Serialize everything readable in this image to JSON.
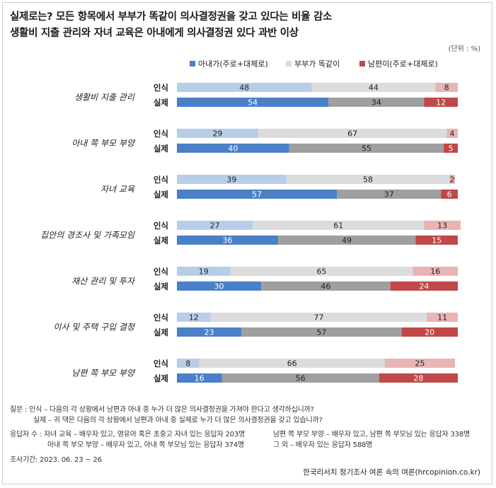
{
  "header": {
    "title_line1": "실제로는? 모든 항목에서 부부가 똑같이 의사결정권을 갖고 있다는 비율 감소",
    "title_line2": "생활비 지출 관리와 자녀 교육은 아내에게 의사결정권 있다 과반 이상",
    "unit": "(단위 : %)"
  },
  "legend": {
    "wife": "아내가(주로+대체로)",
    "equal": "부부가 똑같이",
    "husband": "남편이(주로+대체로)"
  },
  "colors": {
    "wife_perception": "#b8cde8",
    "wife_reality": "#4a80c8",
    "equal_perception": "#dcdcdc",
    "equal_reality": "#9f9f9f",
    "husband_perception": "#e8b4b4",
    "husband_reality": "#c04848",
    "text_perception": "#222222",
    "text_reality": "#ffffff"
  },
  "chart_data": {
    "type": "bar",
    "orientation": "horizontal-stacked-100",
    "row_labels": [
      "인식",
      "실제"
    ],
    "series_names": [
      "아내가(주로+대체로)",
      "부부가 똑같이",
      "남편이(주로+대체로)"
    ],
    "categories": [
      {
        "name": "생활비 지출 관리",
        "perception": [
          48,
          44,
          8
        ],
        "reality": [
          54,
          34,
          12
        ]
      },
      {
        "name": "아내 쪽 부모 부양",
        "perception": [
          29,
          67,
          4
        ],
        "reality": [
          40,
          55,
          5
        ]
      },
      {
        "name": "자녀 교육",
        "perception": [
          39,
          58,
          2
        ],
        "reality": [
          57,
          37,
          6
        ]
      },
      {
        "name": "집안의 경조사 및 가족모임",
        "perception": [
          27,
          61,
          13
        ],
        "reality": [
          36,
          49,
          15
        ]
      },
      {
        "name": "재산 관리 및 투자",
        "perception": [
          19,
          65,
          16
        ],
        "reality": [
          30,
          46,
          24
        ]
      },
      {
        "name": "이사 및 주택 구입 결정",
        "perception": [
          12,
          77,
          11
        ],
        "reality": [
          23,
          57,
          20
        ]
      },
      {
        "name": "남편 쪽 부모 부양",
        "perception": [
          8,
          66,
          25
        ],
        "reality": [
          16,
          56,
          28
        ]
      }
    ],
    "xlim": [
      0,
      100
    ]
  },
  "footer": {
    "q1": "질문 :  인식 – 다음의 각 상황에서 남편과 아내 중 누가 더 많은 의사결정권을 가져야 한다고 생각하십니까?",
    "q2": "실제 – 귀 댁은 다음의 각 상황에서 남편과 아내 중 실제로 누가 더 많은 의사결정권을 갖고 있습니까?",
    "r1a": "응답자 수 : 자녀 교육 – 배우자 있고, 영유아 혹은 초중고 자녀 있는 응답자 203명",
    "r1b": "남편 쪽 부모 부양 – 배우자 있고, 남편 쪽 부모님 있는 응답자 338명",
    "r2a": "아내 쪽 부모 부양 – 배우자 있고, 아내 쪽 부모님 있는 응답자 374명",
    "r2b": "그 외 – 배우자 있는 응답자 588명",
    "period": "조사기간: 2023. 06. 23 ~ 26",
    "source": "한국리서치 정기조사 여론 속의 여론(hrcopinion.co.kr)"
  }
}
